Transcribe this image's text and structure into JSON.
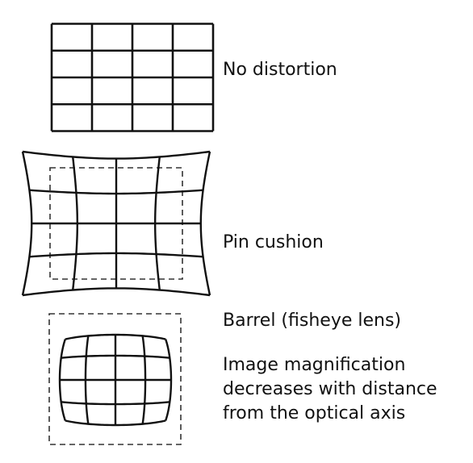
{
  "labels": {
    "no_distortion": "No distortion",
    "pin_cushion": "Pin cushion",
    "barrel": "Barrel (fisheye lens)",
    "note_lines": [
      "Image magnification",
      "decreases with distance",
      "from the optical axis"
    ]
  },
  "diagram": {
    "grid_cells": 4,
    "line_color": "#111111",
    "reference_outline": "dashed"
  }
}
